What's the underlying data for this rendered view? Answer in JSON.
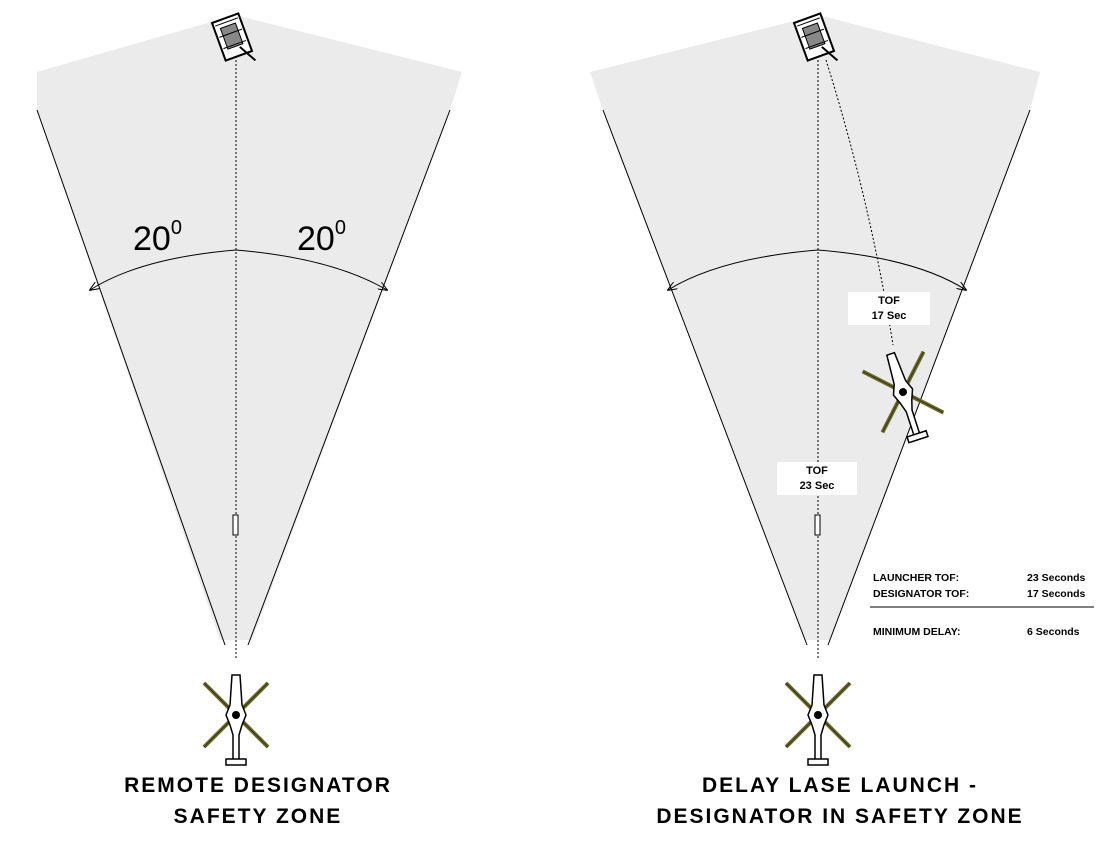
{
  "left": {
    "angle_left": "20",
    "angle_left_unit": "0",
    "angle_right": "20",
    "angle_right_unit": "0",
    "caption": [
      "REMOTE DESIGNATOR",
      "SAFETY ZONE"
    ]
  },
  "right": {
    "designator_box": [
      "TOF",
      "17 Sec"
    ],
    "launcher_box": [
      "TOF",
      "23 Sec"
    ],
    "table": {
      "rows": [
        [
          "LAUNCHER TOF:",
          "23 Seconds"
        ],
        [
          "DESIGNATOR TOF:",
          "17 Seconds"
        ],
        [
          "MINIMUM DELAY:",
          "6 Seconds"
        ]
      ]
    },
    "caption": [
      "DELAY LASE LAUNCH -",
      "DESIGNATOR IN SAFETY ZONE"
    ]
  }
}
